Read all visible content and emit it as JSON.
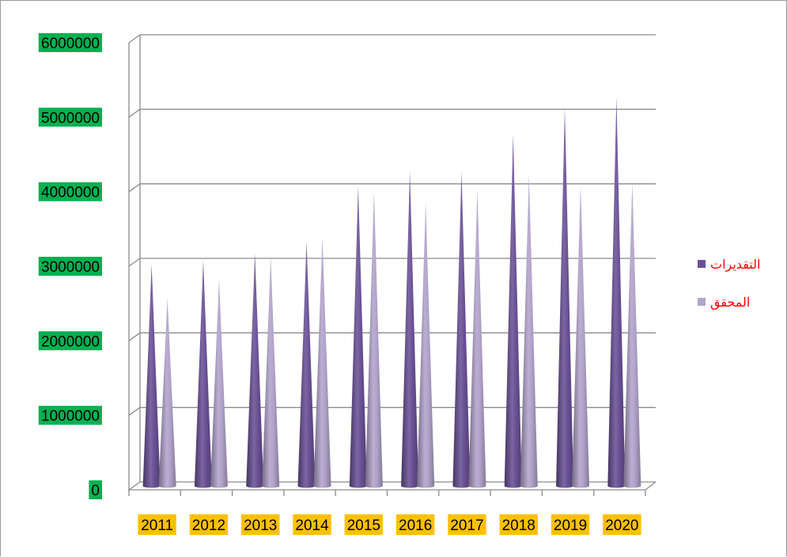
{
  "chart_data": {
    "type": "bar",
    "bar_shape": "cone",
    "categories": [
      "2011",
      "2012",
      "2013",
      "2014",
      "2015",
      "2016",
      "2017",
      "2018",
      "2019",
      "2020"
    ],
    "series": [
      {
        "name": "التقديرات",
        "color": "#6a5196",
        "values": [
          2950000,
          3000000,
          3100000,
          3250000,
          4000000,
          4200000,
          4200000,
          4700000,
          5050000,
          5200000
        ]
      },
      {
        "name": "المحقق",
        "color": "#b1a3cb",
        "values": [
          2500000,
          2750000,
          3050000,
          3320000,
          3930000,
          3780000,
          3950000,
          4150000,
          4030000,
          4050000
        ]
      }
    ],
    "y_ticks": [
      "0",
      "1000000",
      "2000000",
      "3000000",
      "4000000",
      "5000000",
      "6000000"
    ],
    "ylim": [
      0,
      6000000
    ],
    "grid": true,
    "legend_position": "right",
    "title": "",
    "xlabel": "",
    "ylabel": "",
    "tick_label_colors": {
      "y": "#00b050",
      "x": "#ffc000"
    },
    "legend_text_color": "#ff0000"
  }
}
